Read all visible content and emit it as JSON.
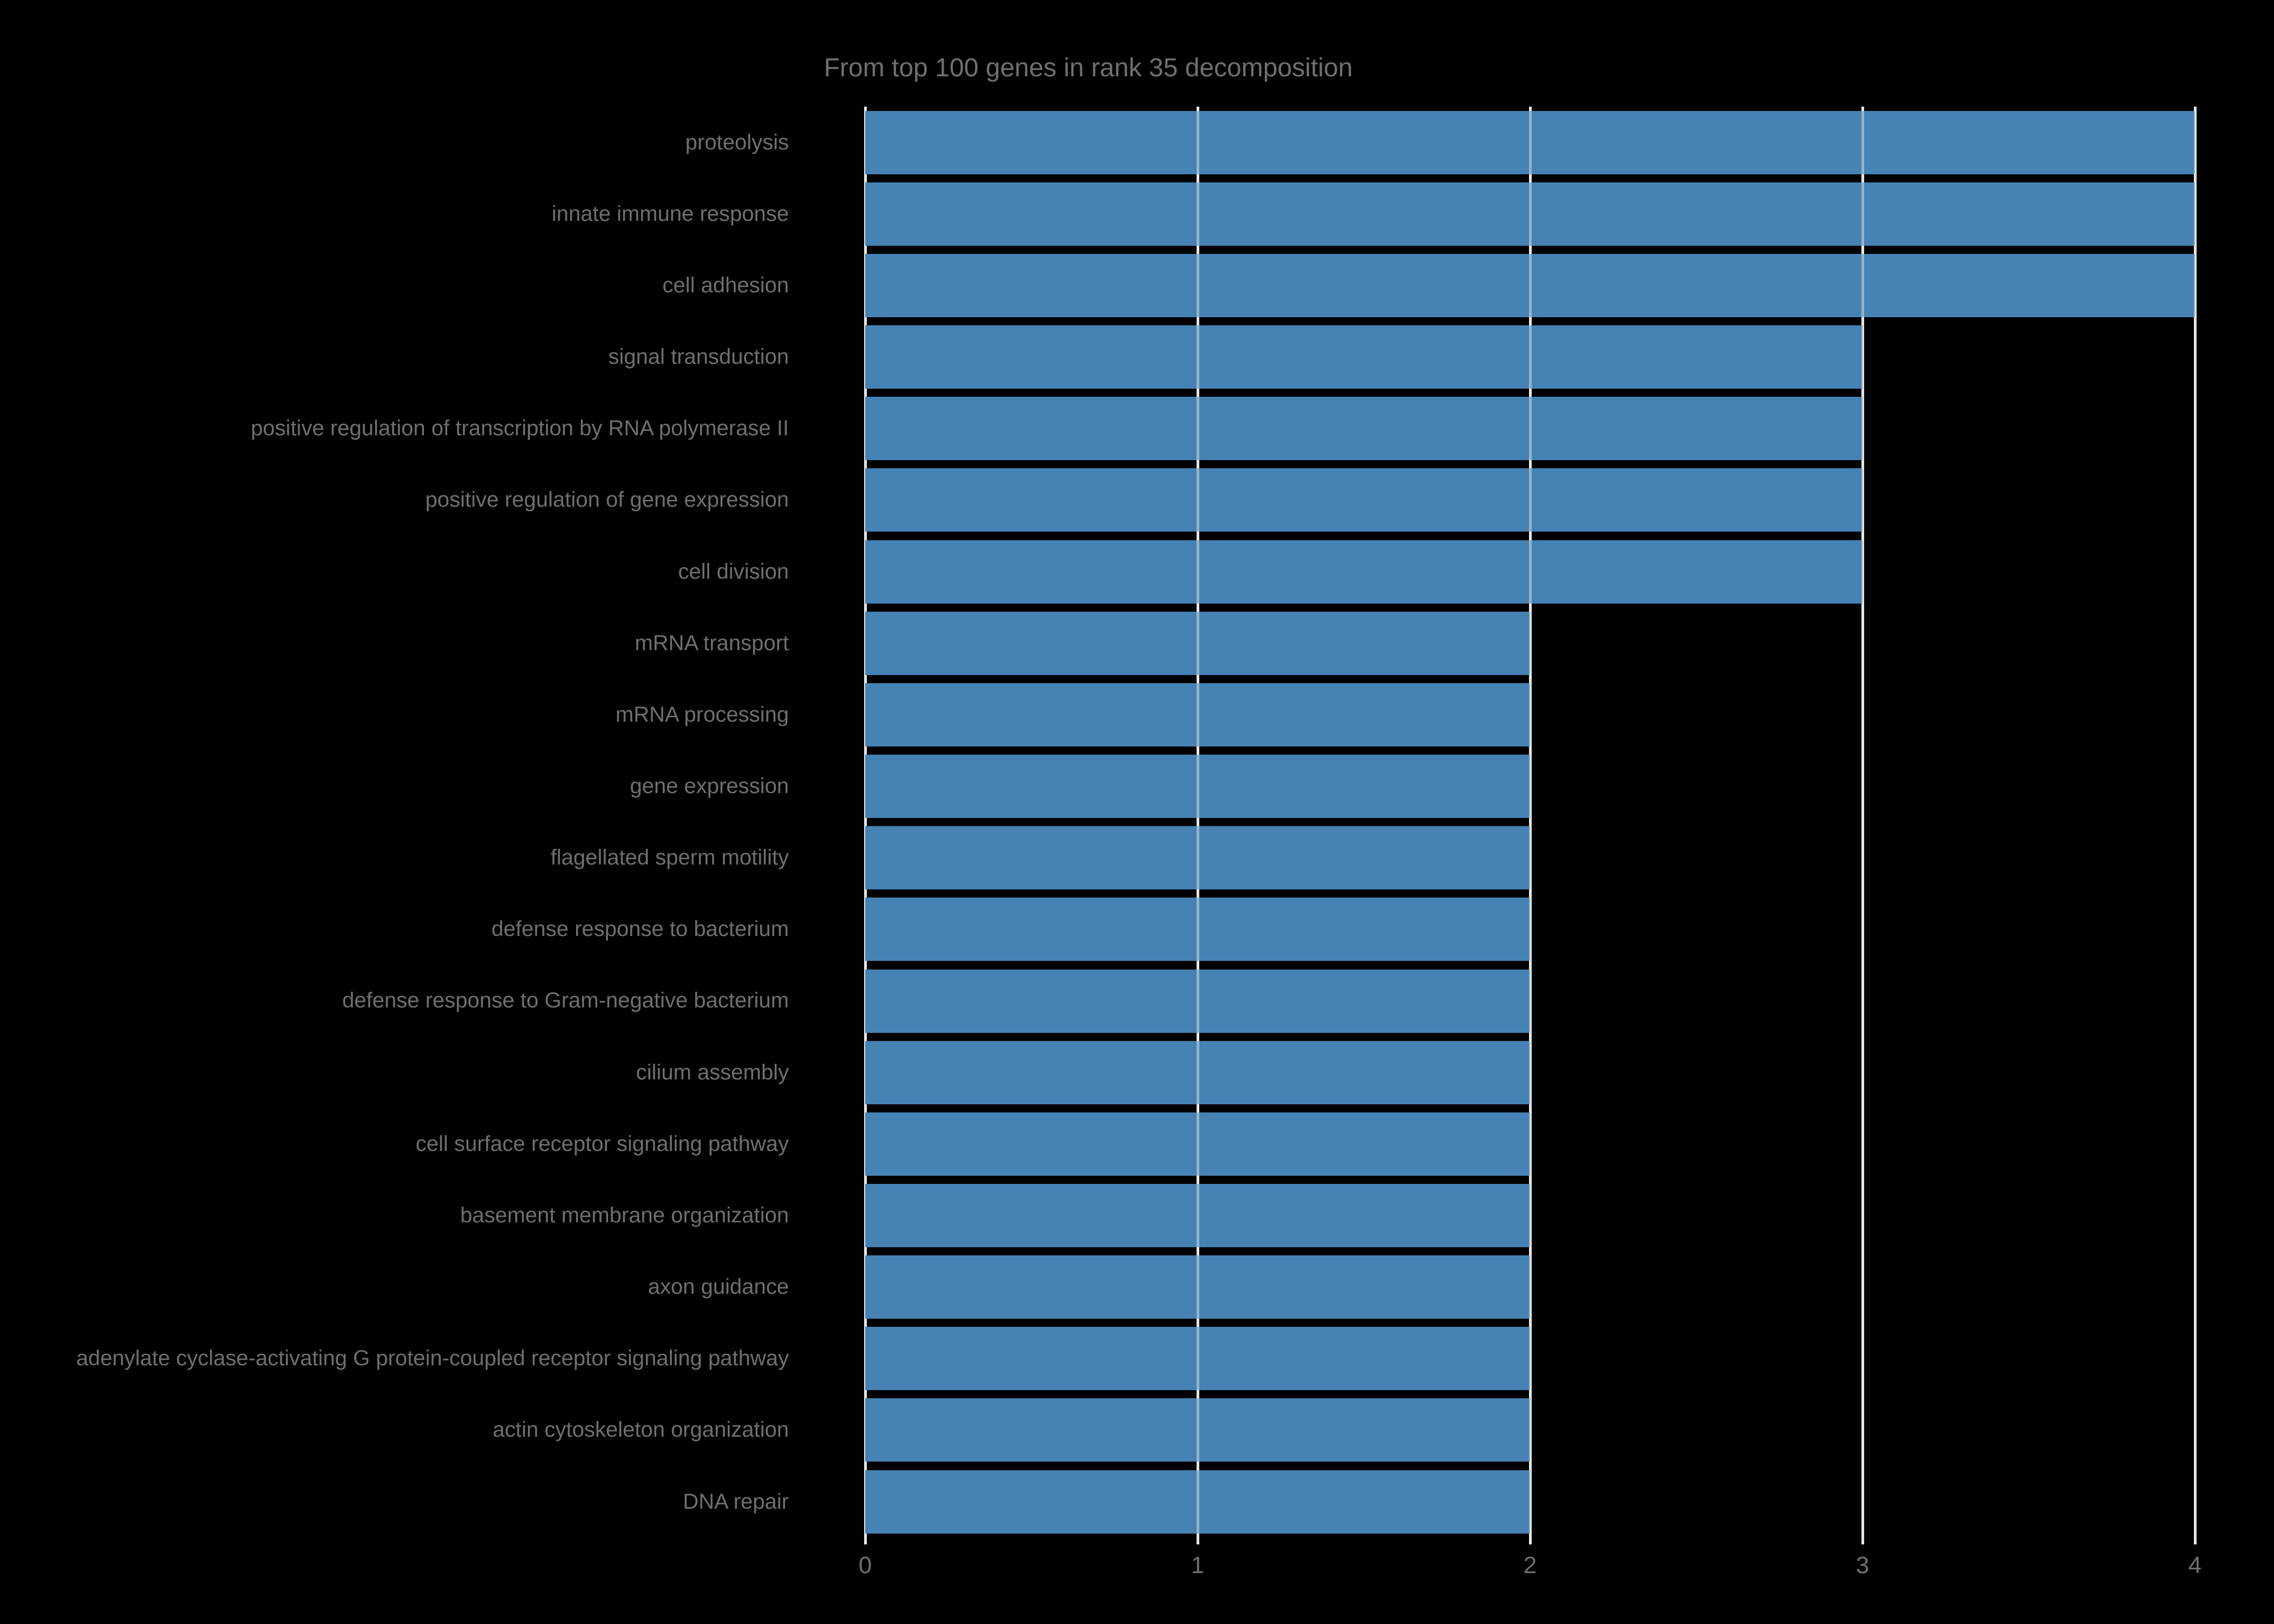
{
  "title": "From top 100 genes in rank 35 decomposition",
  "chart_data": {
    "type": "bar",
    "orientation": "horizontal",
    "title": "From top 100 genes in rank 35 decomposition",
    "categories": [
      "proteolysis",
      "innate immune response",
      "cell adhesion",
      "signal transduction",
      "positive regulation of transcription by RNA polymerase II",
      "positive regulation of gene expression",
      "cell division",
      "mRNA transport",
      "mRNA processing",
      "gene expression",
      "flagellated sperm motility",
      "defense response to bacterium",
      "defense response to Gram-negative bacterium",
      "cilium assembly",
      "cell surface receptor signaling pathway",
      "basement membrane organization",
      "axon guidance",
      "adenylate cyclase-activating G protein-coupled receptor signaling pathway",
      "actin cytoskeleton organization",
      "DNA repair"
    ],
    "values": [
      4,
      4,
      4,
      3,
      3,
      3,
      3,
      2,
      2,
      2,
      2,
      2,
      2,
      2,
      2,
      2,
      2,
      2,
      2,
      2
    ],
    "xticks": [
      "0",
      "1",
      "2",
      "3",
      "4"
    ],
    "xlim": [
      0,
      4
    ],
    "xlabel": "",
    "ylabel": "",
    "grid": true,
    "legend": false,
    "colors": {
      "background": "#000000",
      "bar": "#4682b4",
      "gridline": "#e6e6e6",
      "text": "#6f6f6f"
    }
  }
}
